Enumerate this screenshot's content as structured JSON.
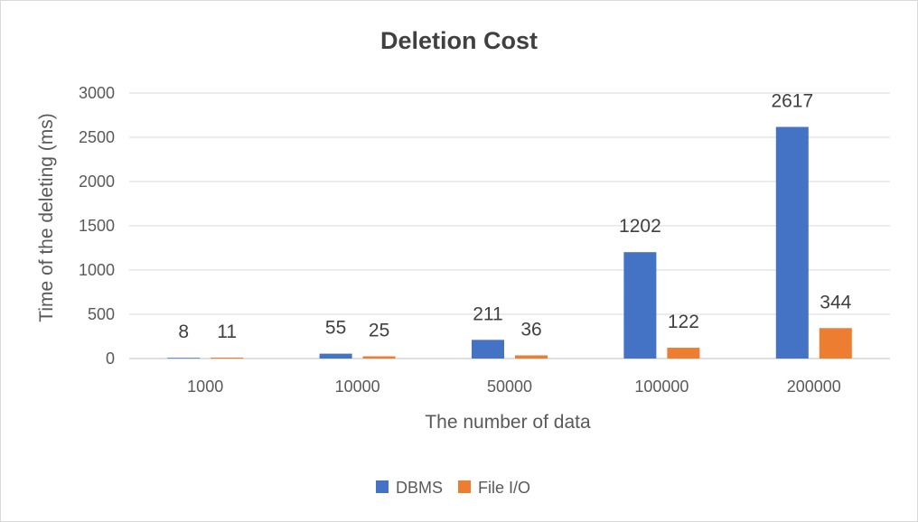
{
  "chart_data": {
    "type": "bar",
    "title": "Deletion Cost",
    "xlabel": "The number of data",
    "ylabel": "Time of the deleting (ms)",
    "categories": [
      "1000",
      "10000",
      "50000",
      "100000",
      "200000"
    ],
    "series": [
      {
        "name": "DBMS",
        "color": "#4472c4",
        "values": [
          8,
          55,
          211,
          1202,
          2617
        ]
      },
      {
        "name": "File I/O",
        "color": "#ed7d31",
        "values": [
          11,
          25,
          36,
          122,
          344
        ]
      }
    ],
    "ylim": [
      0,
      3000
    ],
    "yticks": [
      0,
      500,
      1000,
      1500,
      2000,
      2500,
      3000
    ],
    "grid": true,
    "legend_position": "bottom"
  }
}
